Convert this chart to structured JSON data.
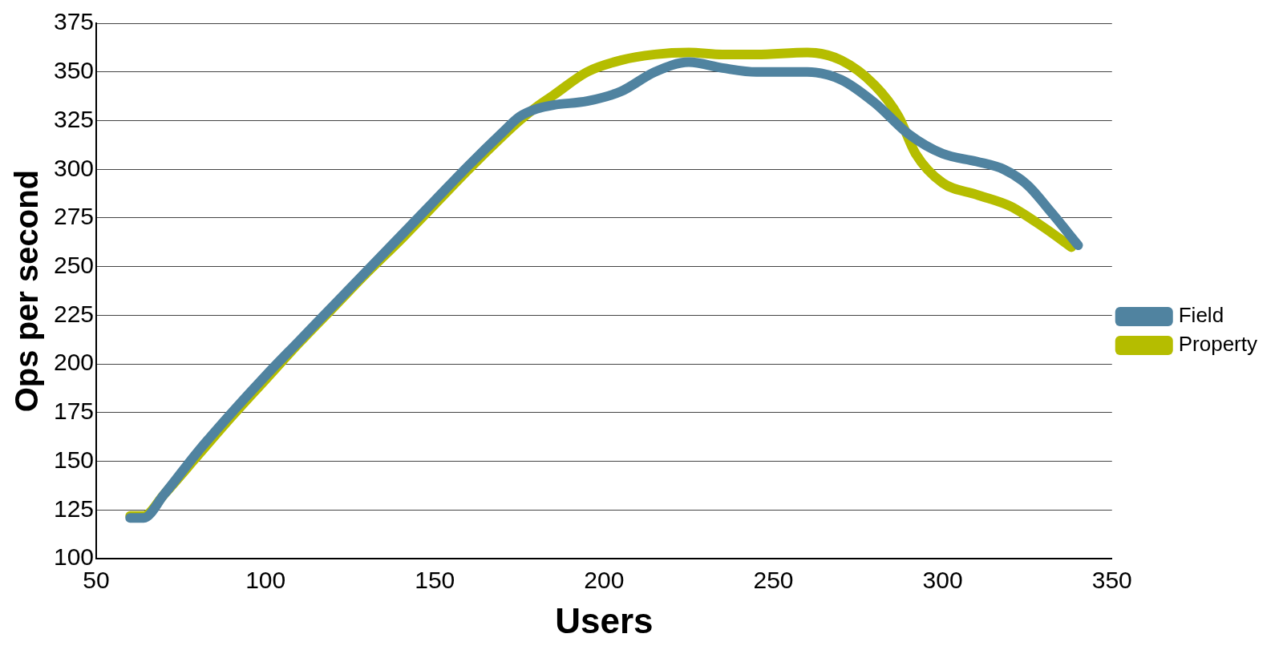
{
  "chart_data": {
    "type": "line",
    "xlabel": "Users",
    "ylabel": "Ops per second",
    "xlim": [
      50,
      350
    ],
    "xticks": [
      50,
      100,
      150,
      200,
      250,
      300,
      350
    ],
    "ylim": [
      100,
      375
    ],
    "yticks": [
      100,
      125,
      150,
      175,
      200,
      225,
      250,
      275,
      300,
      325,
      350,
      375
    ],
    "grid": "y",
    "legend": "right",
    "marker": "none",
    "line_style": "solid",
    "series": [
      {
        "name": "Field",
        "color": "#5083a0",
        "x": [
          60,
          64,
          70,
          80,
          90,
          100,
          110,
          120,
          130,
          140,
          150,
          160,
          170,
          175,
          180,
          185,
          195,
          205,
          215,
          225,
          235,
          245,
          260,
          270,
          280,
          290,
          300,
          310,
          318,
          325,
          332,
          340
        ],
        "values": [
          121,
          121,
          133,
          155,
          175,
          194,
          212,
          230,
          248,
          266,
          284,
          302,
          319,
          327,
          331,
          333,
          335,
          340,
          350,
          355,
          352,
          350,
          350,
          346,
          334,
          318,
          308,
          304,
          300,
          292,
          278,
          261
        ]
      },
      {
        "name": "Property",
        "color": "#b5bd00",
        "x": [
          60,
          64,
          70,
          80,
          90,
          100,
          110,
          120,
          130,
          140,
          150,
          160,
          170,
          175,
          180,
          185,
          195,
          205,
          215,
          225,
          235,
          245,
          260,
          270,
          280,
          287,
          292,
          300,
          310,
          320,
          330,
          338
        ],
        "values": [
          122,
          122,
          133,
          153,
          173,
          192,
          211,
          229,
          247,
          264,
          282,
          300,
          317,
          325,
          332,
          338,
          350,
          356,
          359,
          360,
          359,
          359,
          360,
          356,
          343,
          327,
          308,
          293,
          287,
          281,
          270,
          260
        ]
      }
    ]
  }
}
